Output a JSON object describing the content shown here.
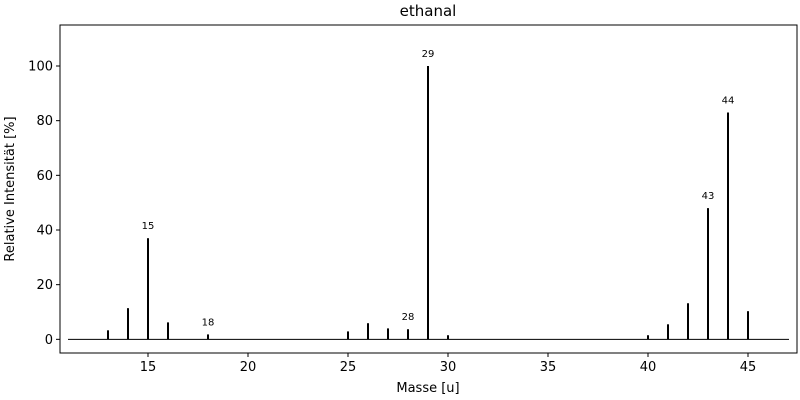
{
  "chart_data": {
    "type": "stem",
    "title": "ethanal",
    "x_label": "Masse [u]",
    "y_label": "Relative Intensität [%]",
    "x": [
      13,
      14,
      15,
      16,
      18,
      25,
      26,
      27,
      28,
      29,
      30,
      40,
      41,
      42,
      43,
      44,
      45
    ],
    "values": [
      3.3,
      11.4,
      37,
      6.2,
      1.8,
      2.9,
      5.9,
      4,
      3.7,
      100,
      1.5,
      1.5,
      5.5,
      13.2,
      48,
      83,
      10.3
    ],
    "peak_labels": [
      null,
      null,
      15,
      null,
      18,
      null,
      null,
      null,
      28,
      29,
      null,
      null,
      null,
      null,
      43,
      44,
      null
    ],
    "color": "#000000",
    "xlim": [
      10.6,
      47.45
    ],
    "xticks": [
      15,
      20,
      25,
      30,
      35,
      40,
      45
    ],
    "ylim": [
      -5,
      115
    ],
    "yticks": [
      0,
      20,
      40,
      60,
      80,
      100
    ]
  }
}
